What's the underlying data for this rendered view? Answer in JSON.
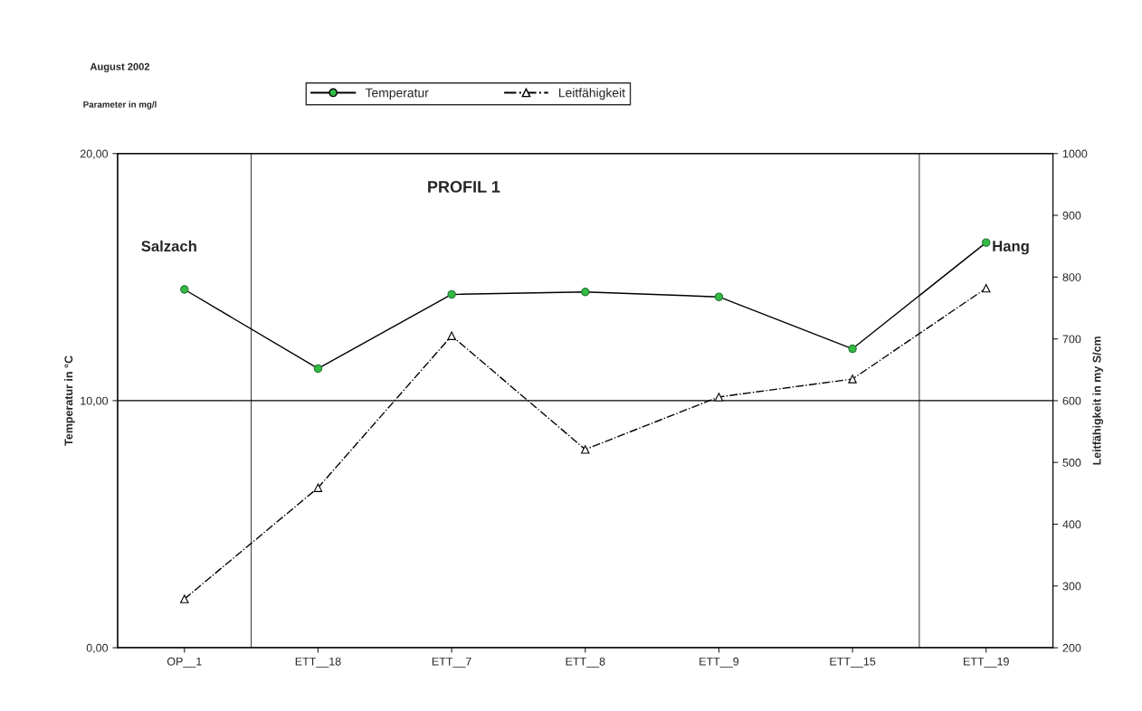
{
  "chart_data": {
    "type": "line",
    "title": "PROFIL 1",
    "categories": [
      "OP__1",
      "ETT__18",
      "ETT__7",
      "ETT__8",
      "ETT__9",
      "ETT__15",
      "ETT__19"
    ],
    "series": [
      {
        "name": "Temperatur",
        "color": "#000000",
        "marker": "circle",
        "line_style": "solid",
        "values": [
          14.5,
          11.3,
          14.3,
          14.4,
          14.2,
          12.1,
          16.4
        ]
      },
      {
        "name": "Leitfähigkeit",
        "color": "#000000",
        "marker": "triangle",
        "line_style": "dashdot",
        "axis": "y2",
        "values": [
          279,
          459,
          705,
          521,
          606,
          635,
          782
        ]
      }
    ],
    "ylim": [
      0,
      20
    ],
    "yticks": [
      {
        "value": 0,
        "label": "0,00"
      },
      {
        "value": 10,
        "label": "10,00"
      },
      {
        "value": 20,
        "label": "20,00"
      }
    ],
    "y2lim": [
      200,
      1000
    ],
    "y2ticks": [
      200,
      300,
      400,
      500,
      600,
      700,
      800,
      900,
      1000
    ],
    "ylabel": "Temperatur in °C",
    "y2label": "Leitfähigkeit in my S/cm",
    "grid": "y",
    "legend": "top",
    "annotations": [
      "August 2002",
      "Parameter in mg/l",
      "Salzach",
      "Hang"
    ]
  }
}
